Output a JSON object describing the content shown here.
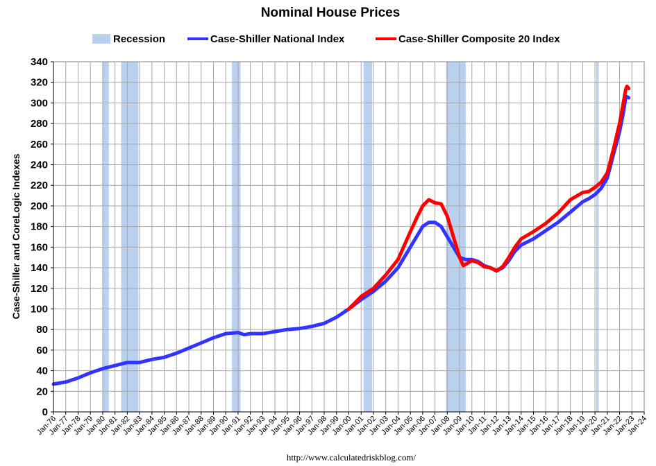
{
  "chart_data": {
    "type": "line",
    "title": "Nominal House Prices",
    "ylabel": "Case-Shiller and CoreLogic Indexes",
    "xlabel": "",
    "source": "http://www.calculatedriskblog.com/",
    "ylim": [
      0,
      340
    ],
    "xlim": [
      1976,
      2024
    ],
    "yticks": [
      0,
      20,
      40,
      60,
      80,
      100,
      120,
      140,
      160,
      180,
      200,
      220,
      240,
      260,
      280,
      300,
      320,
      340
    ],
    "xtick_labels": [
      "Jan-76",
      "Jan-77",
      "Jan-78",
      "Jan-79",
      "Jan-80",
      "Jan-81",
      "Jan-82",
      "Jan-83",
      "Jan-84",
      "Jan-85",
      "Jan-86",
      "Jan-87",
      "Jan-88",
      "Jan-89",
      "Jan-90",
      "Jan-91",
      "Jan-92",
      "Jan-93",
      "Jan-94",
      "Jan-95",
      "Jan-96",
      "Jan-97",
      "Jan-98",
      "Jan-99",
      "Jan-00",
      "Jan-01",
      "Jan-02",
      "Jan-03",
      "Jan-04",
      "Jan-05",
      "Jan-06",
      "Jan-07",
      "Jan-08",
      "Jan-09",
      "Jan-10",
      "Jan-11",
      "Jan-12",
      "Jan-13",
      "Jan-14",
      "Jan-15",
      "Jan-16",
      "Jan-17",
      "Jan-18",
      "Jan-19",
      "Jan-20",
      "Jan-21",
      "Jan-22",
      "Jan-23",
      "Jan-24"
    ],
    "grid": true,
    "legend_placement": "top",
    "recessions": [
      {
        "start": 1980.0,
        "end": 1980.5
      },
      {
        "start": 1981.5,
        "end": 1982.9
      },
      {
        "start": 1990.5,
        "end": 1991.2
      },
      {
        "start": 2001.2,
        "end": 2001.9
      },
      {
        "start": 2007.9,
        "end": 2009.5
      },
      {
        "start": 2020.1,
        "end": 2020.3
      }
    ],
    "series": [
      {
        "name": "Case-Shiller National Index",
        "color": "#3333ff",
        "points": [
          [
            1976.0,
            27
          ],
          [
            1977.0,
            29
          ],
          [
            1978.0,
            33
          ],
          [
            1979.0,
            38
          ],
          [
            1980.0,
            42
          ],
          [
            1981.0,
            45
          ],
          [
            1982.0,
            48
          ],
          [
            1983.0,
            48
          ],
          [
            1984.0,
            51
          ],
          [
            1985.0,
            53
          ],
          [
            1986.0,
            57
          ],
          [
            1987.0,
            62
          ],
          [
            1988.0,
            67
          ],
          [
            1989.0,
            72
          ],
          [
            1990.0,
            76
          ],
          [
            1991.0,
            77
          ],
          [
            1991.5,
            75
          ],
          [
            1992.0,
            76
          ],
          [
            1993.0,
            76
          ],
          [
            1994.0,
            78
          ],
          [
            1995.0,
            80
          ],
          [
            1996.0,
            81
          ],
          [
            1997.0,
            83
          ],
          [
            1998.0,
            86
          ],
          [
            1999.0,
            92
          ],
          [
            2000.0,
            100
          ],
          [
            2001.0,
            109
          ],
          [
            2002.0,
            117
          ],
          [
            2003.0,
            127
          ],
          [
            2004.0,
            140
          ],
          [
            2005.0,
            160
          ],
          [
            2006.0,
            180
          ],
          [
            2006.5,
            184
          ],
          [
            2007.0,
            184
          ],
          [
            2007.5,
            180
          ],
          [
            2008.0,
            170
          ],
          [
            2008.5,
            160
          ],
          [
            2009.0,
            150
          ],
          [
            2009.5,
            148
          ],
          [
            2010.0,
            148
          ],
          [
            2010.5,
            146
          ],
          [
            2011.0,
            142
          ],
          [
            2011.5,
            140
          ],
          [
            2012.0,
            137
          ],
          [
            2012.5,
            140
          ],
          [
            2013.0,
            147
          ],
          [
            2013.5,
            156
          ],
          [
            2014.0,
            162
          ],
          [
            2015.0,
            168
          ],
          [
            2016.0,
            176
          ],
          [
            2017.0,
            184
          ],
          [
            2018.0,
            194
          ],
          [
            2019.0,
            204
          ],
          [
            2019.5,
            207
          ],
          [
            2020.0,
            211
          ],
          [
            2020.5,
            217
          ],
          [
            2021.0,
            227
          ],
          [
            2021.5,
            250
          ],
          [
            2022.0,
            272
          ],
          [
            2022.3,
            290
          ],
          [
            2022.5,
            305
          ],
          [
            2022.6,
            306
          ],
          [
            2022.75,
            305
          ]
        ]
      },
      {
        "name": "Case-Shiller Composite 20 Index",
        "color": "#ff0000",
        "points": [
          [
            2000.0,
            100
          ],
          [
            2000.5,
            106
          ],
          [
            2001.0,
            112
          ],
          [
            2002.0,
            120
          ],
          [
            2003.0,
            133
          ],
          [
            2004.0,
            148
          ],
          [
            2005.0,
            175
          ],
          [
            2005.5,
            188
          ],
          [
            2006.0,
            200
          ],
          [
            2006.5,
            206
          ],
          [
            2007.0,
            203
          ],
          [
            2007.5,
            202
          ],
          [
            2008.0,
            190
          ],
          [
            2008.5,
            170
          ],
          [
            2009.0,
            150
          ],
          [
            2009.3,
            142
          ],
          [
            2009.6,
            144
          ],
          [
            2010.0,
            147
          ],
          [
            2010.5,
            145
          ],
          [
            2011.0,
            141
          ],
          [
            2011.5,
            140
          ],
          [
            2012.0,
            137
          ],
          [
            2012.5,
            141
          ],
          [
            2013.0,
            150
          ],
          [
            2013.5,
            160
          ],
          [
            2014.0,
            168
          ],
          [
            2015.0,
            175
          ],
          [
            2016.0,
            183
          ],
          [
            2017.0,
            193
          ],
          [
            2018.0,
            206
          ],
          [
            2019.0,
            213
          ],
          [
            2019.5,
            214
          ],
          [
            2020.0,
            218
          ],
          [
            2020.5,
            223
          ],
          [
            2021.0,
            232
          ],
          [
            2021.5,
            255
          ],
          [
            2022.0,
            280
          ],
          [
            2022.3,
            300
          ],
          [
            2022.5,
            313
          ],
          [
            2022.6,
            316
          ],
          [
            2022.75,
            314
          ]
        ]
      }
    ],
    "legend": [
      {
        "label": "Recession",
        "kind": "patch",
        "color": "#b9d1ee"
      },
      {
        "label": "Case-Shiller National Index",
        "kind": "line",
        "color": "#3333ff"
      },
      {
        "label": "Case-Shiller Composite 20 Index",
        "kind": "line",
        "color": "#ff0000"
      }
    ]
  }
}
